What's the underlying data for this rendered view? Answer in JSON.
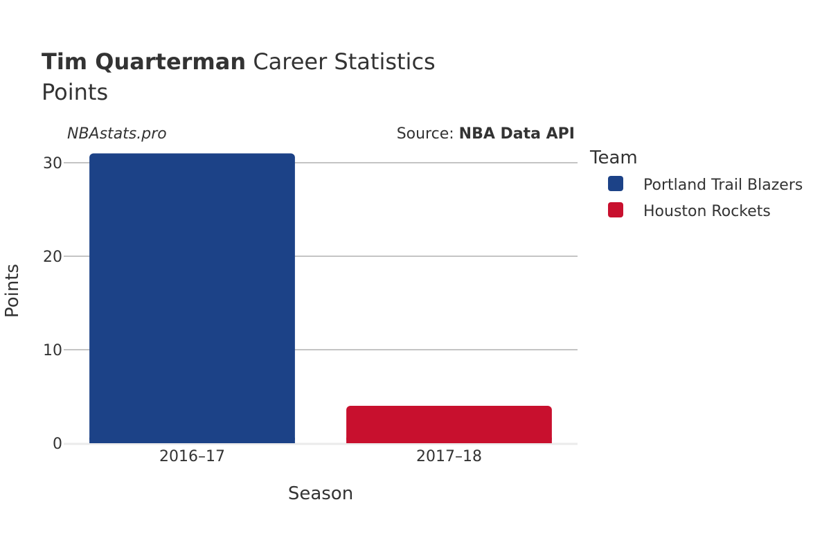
{
  "header": {
    "title_bold": "Tim Quarterman",
    "title_rest": " Career Statistics",
    "subtitle": "Points"
  },
  "credits": {
    "site": "NBAstats.pro",
    "source_prefix": "Source: ",
    "source_name": "NBA Data API"
  },
  "colors": {
    "portland": "#1c4287",
    "houston": "#c8102e",
    "grid": "#8a8a8a",
    "baseline": "#ebebeb",
    "text": "#333333"
  },
  "chart_data": {
    "type": "bar",
    "title": "Tim Quarterman Career Statistics",
    "subtitle": "Points",
    "xlabel": "Season",
    "ylabel": "Points",
    "categories": [
      "2016–17",
      "2017–18"
    ],
    "yticks": [
      0,
      10,
      20,
      30
    ],
    "ylim": [
      0,
      31
    ],
    "grid": true,
    "legend": {
      "title": "Team",
      "placement": "right",
      "entries": [
        "Portland Trail Blazers",
        "Houston Rockets"
      ]
    },
    "bars": [
      {
        "category": "2016–17",
        "team": "Portland Trail Blazers",
        "value": 31,
        "color": "#1c4287"
      },
      {
        "category": "2017–18",
        "team": "Houston Rockets",
        "value": 4,
        "color": "#c8102e"
      }
    ]
  }
}
